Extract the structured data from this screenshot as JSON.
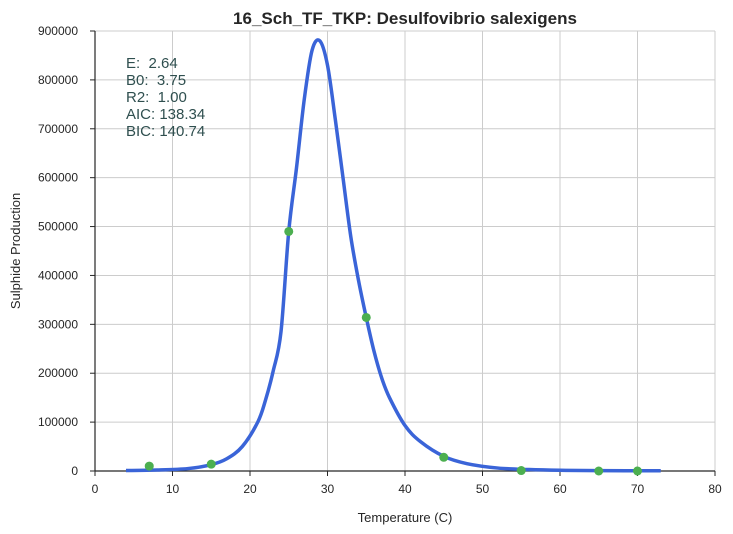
{
  "chart_data": {
    "type": "scatter",
    "title": "16_Sch_TF_TKP: Desulfovibrio salexigens",
    "xlabel": "Temperature (C)",
    "ylabel": "Sulphide Production",
    "xlim": [
      0,
      80
    ],
    "ylim": [
      0,
      900000
    ],
    "xticks": [
      "0",
      "10",
      "20",
      "30",
      "40",
      "50",
      "60",
      "70",
      "80"
    ],
    "yticks": [
      "0",
      "100000",
      "200000",
      "300000",
      "400000",
      "500000",
      "600000",
      "700000",
      "800000",
      "900000"
    ],
    "grid": true,
    "points": {
      "x": [
        7,
        15,
        25,
        35,
        45,
        55,
        65,
        70
      ],
      "y": [
        10000,
        14000,
        490000,
        314000,
        28000,
        1000,
        0,
        0
      ],
      "color": "#4caf50"
    },
    "fit_curve": {
      "color": "#3a64d8",
      "x": [
        4,
        8,
        12,
        15,
        17,
        19,
        21,
        22,
        23,
        24,
        25,
        26,
        27,
        28,
        29,
        30,
        31,
        32,
        33,
        34,
        35,
        36,
        37,
        38,
        40,
        42,
        45,
        48,
        52,
        56,
        60,
        65,
        73
      ],
      "y": [
        1000,
        2000,
        5000,
        13000,
        25000,
        50000,
        100000,
        145000,
        205000,
        285000,
        490000,
        620000,
        760000,
        860000,
        880000,
        830000,
        720000,
        600000,
        480000,
        390000,
        314000,
        245000,
        190000,
        150000,
        93000,
        60000,
        30000,
        15000,
        6000,
        3000,
        1500,
        800,
        400
      ]
    },
    "annotations": [
      "E:  2.64",
      "B0:  3.75",
      "R2:  1.00",
      "AIC: 138.34",
      "BIC: 140.74"
    ]
  }
}
